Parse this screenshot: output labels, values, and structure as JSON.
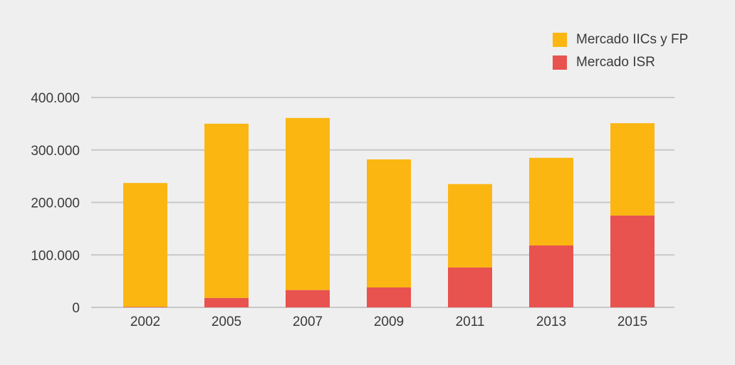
{
  "chart_data": {
    "type": "bar",
    "stacked": true,
    "categories": [
      "2002",
      "2005",
      "2007",
      "2009",
      "2011",
      "2013",
      "2015"
    ],
    "series": [
      {
        "name": "Mercado ISR",
        "color": "#e8524f",
        "values": [
          1000,
          18000,
          33000,
          38000,
          76000,
          118000,
          175000
        ]
      },
      {
        "name": "Mercado IICs y FP",
        "color": "#fbb612",
        "values": [
          236000,
          332000,
          328000,
          244000,
          159000,
          167000,
          176000
        ]
      }
    ],
    "ylim": [
      0,
      400000
    ],
    "yticks": [
      0,
      100000,
      200000,
      300000,
      400000
    ],
    "ytick_labels": [
      "0",
      "100.000",
      "200.000",
      "300.000",
      "400.000"
    ],
    "grid": true,
    "legend_position": "top-right",
    "legend": [
      {
        "label": "Mercado IICs y FP",
        "color": "#fbb612"
      },
      {
        "label": "Mercado ISR",
        "color": "#e8524f"
      }
    ],
    "gridline_color": "#c8c8c8",
    "title": "",
    "xlabel": "",
    "ylabel": ""
  }
}
